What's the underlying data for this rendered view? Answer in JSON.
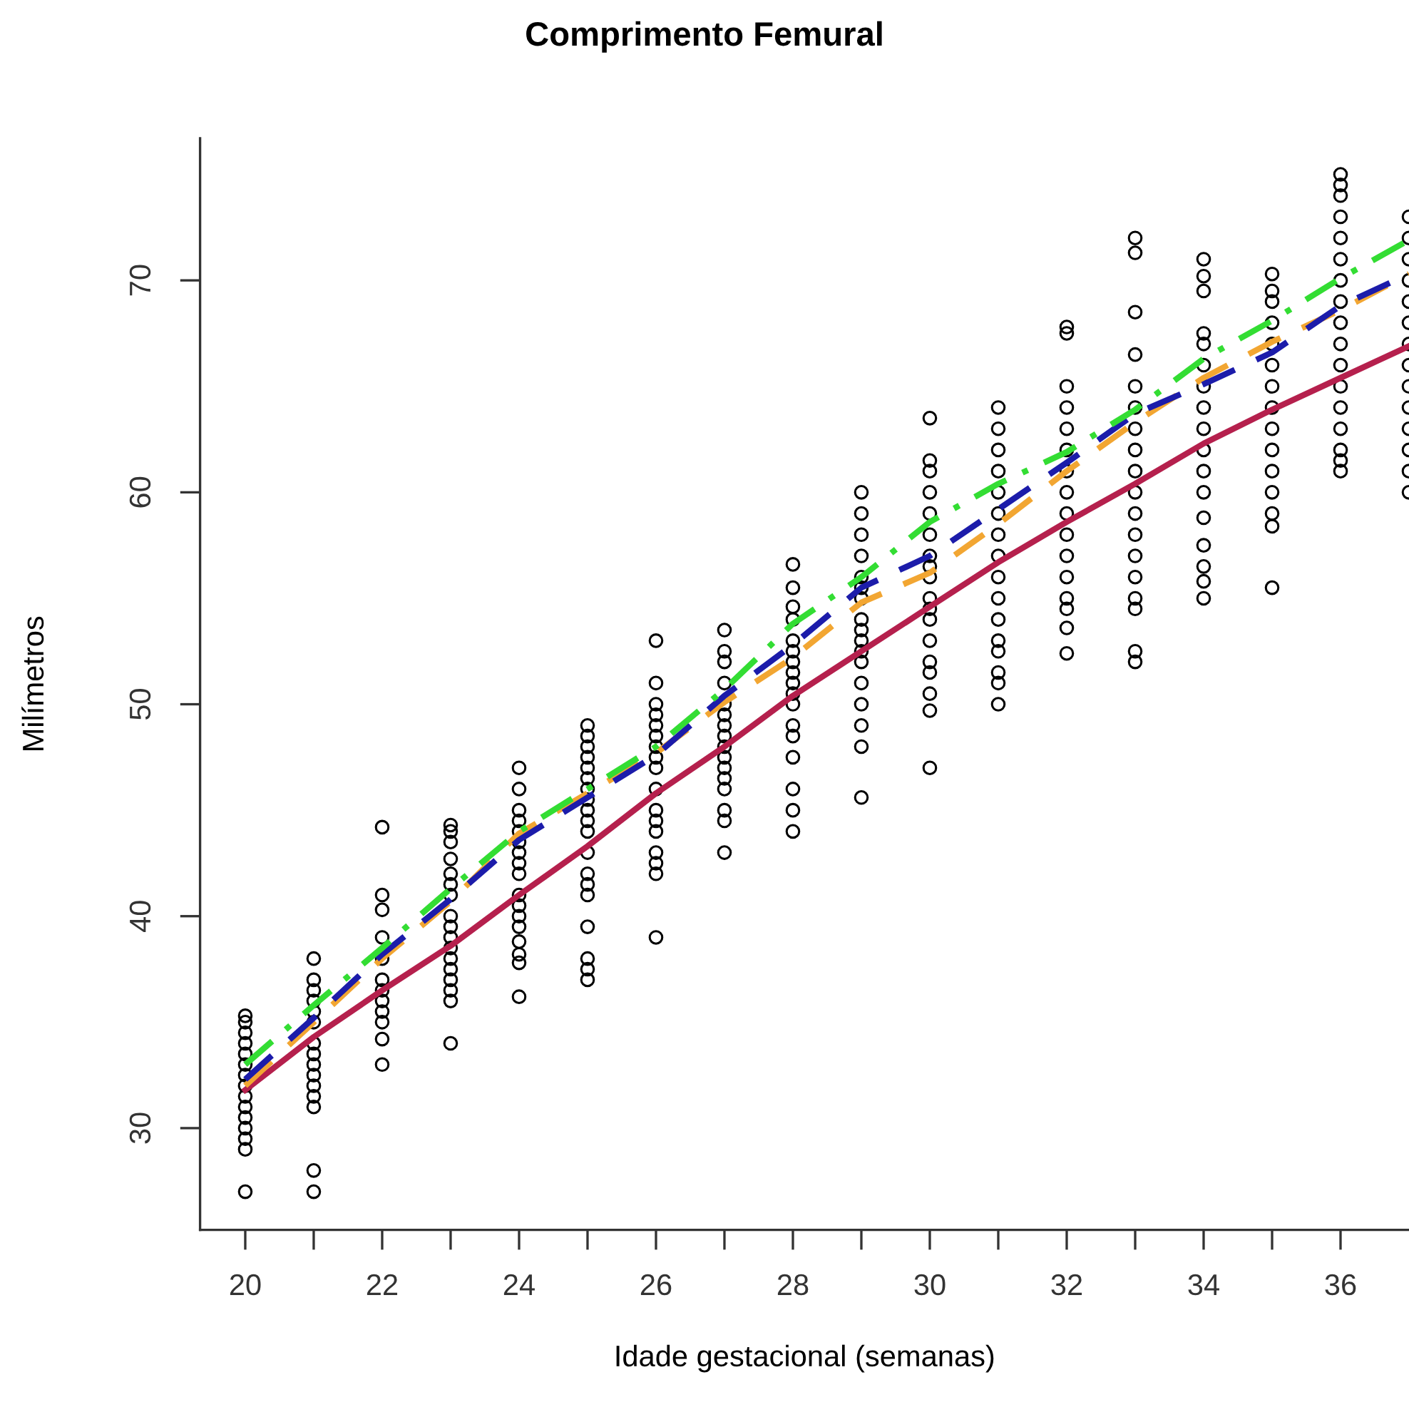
{
  "chart_data": {
    "type": "scatter",
    "title": "Comprimento Femural",
    "xlabel": "Idade gestacional (semanas)",
    "ylabel": "Milímetros",
    "xlim": [
      19.34,
      37.0
    ],
    "ylim": [
      25.2,
      76.7
    ],
    "xticks": [
      20,
      {
        "value": 21,
        "label": null
      },
      22,
      {
        "value": 23,
        "label": null
      },
      24,
      {
        "value": 25,
        "label": null
      },
      26,
      {
        "value": 27,
        "label": null
      },
      28,
      {
        "value": 29,
        "label": null
      },
      30,
      {
        "value": 31,
        "label": null
      },
      32,
      {
        "value": 33,
        "label": null
      },
      34,
      {
        "value": 35,
        "label": null
      },
      36
    ],
    "yticks": [
      30,
      40,
      50,
      60,
      70
    ],
    "grid": false,
    "legend": false,
    "series": [
      {
        "color": "#000000",
        "marker": "circle",
        "x": [
          20,
          20,
          20,
          20,
          20,
          20,
          20,
          20,
          20,
          20,
          20,
          20,
          20,
          20,
          20,
          21,
          21,
          21,
          21,
          21,
          21,
          21,
          21,
          21,
          21,
          21,
          21,
          21,
          21,
          21,
          22,
          22,
          22,
          22,
          22,
          22,
          22,
          22,
          22,
          22,
          22,
          22,
          23,
          23,
          23,
          23,
          23,
          23,
          23,
          23,
          23,
          23,
          23,
          23,
          23,
          23,
          23,
          23,
          23,
          24,
          24,
          24,
          24,
          24,
          24,
          24,
          24,
          24,
          24,
          24,
          24,
          24,
          24,
          24,
          24,
          24,
          25,
          25,
          25,
          25,
          25,
          25,
          25,
          25,
          25,
          25,
          25,
          25,
          25,
          25,
          25,
          25,
          25,
          25,
          25,
          26,
          26,
          26,
          26,
          26,
          26,
          26,
          26,
          26,
          26,
          26,
          26,
          26,
          26,
          26,
          26,
          26,
          27,
          27,
          27,
          27,
          27,
          27,
          27,
          27,
          27,
          27,
          27,
          27,
          27,
          27,
          27,
          27,
          28,
          28,
          28,
          28,
          28,
          28,
          28,
          28,
          28,
          28,
          28,
          28,
          28,
          28,
          28,
          28,
          28,
          29,
          29,
          29,
          29,
          29,
          29,
          29,
          29,
          29,
          29,
          29,
          29,
          29,
          29,
          29,
          29,
          29,
          30,
          30,
          30,
          30,
          30,
          30,
          30,
          30,
          30,
          30,
          30,
          30,
          30,
          30,
          30,
          30,
          30,
          30,
          31,
          31,
          31,
          31,
          31,
          31,
          31,
          31,
          31,
          31,
          31,
          31,
          31,
          31,
          31,
          31,
          32,
          32,
          32,
          32,
          32,
          32,
          32,
          32,
          32,
          32,
          32,
          32,
          32,
          32,
          32,
          32,
          33,
          33,
          33,
          33,
          33,
          33,
          33,
          33,
          33,
          33,
          33,
          33,
          33,
          33,
          33,
          33,
          33,
          33,
          34,
          34,
          34,
          34,
          34,
          34,
          34,
          34,
          34,
          34,
          34,
          34,
          34,
          34,
          34,
          34,
          34,
          35,
          35,
          35,
          35,
          35,
          35,
          35,
          35,
          35,
          35,
          35,
          35,
          35,
          35,
          35,
          36,
          36,
          36,
          36,
          36,
          36,
          36,
          36,
          36,
          36,
          36,
          36,
          36,
          36,
          36,
          36,
          36,
          37,
          37,
          37,
          37,
          37,
          37,
          37,
          37,
          37,
          37,
          37,
          37,
          37,
          37
        ],
        "values": [
          27,
          29,
          29.5,
          30,
          30.5,
          31,
          31.5,
          32,
          32.5,
          33,
          33.5,
          34,
          34.5,
          35,
          35.3,
          27,
          28,
          31,
          31.5,
          32,
          32.5,
          33,
          33.5,
          34,
          35,
          35.5,
          36,
          36.5,
          37,
          38,
          33,
          34.2,
          35,
          35.5,
          36,
          36.5,
          37,
          38,
          39,
          40.3,
          41,
          44.2,
          34,
          36,
          36.5,
          37,
          37.5,
          38,
          38.5,
          39,
          39.5,
          40,
          41,
          41.5,
          42,
          42.7,
          43.5,
          44,
          44.3,
          36.2,
          37.8,
          38.2,
          38.8,
          39.5,
          40,
          40.5,
          41,
          42,
          42.5,
          43,
          43.5,
          44,
          44.5,
          45,
          46,
          47,
          37,
          37.5,
          38,
          39.5,
          41,
          41.5,
          42,
          43,
          44,
          44.5,
          45,
          45.5,
          46,
          46.5,
          47,
          47.5,
          48,
          48.5,
          49,
          39,
          42,
          42.5,
          43,
          44,
          44.5,
          45,
          46,
          47,
          47.5,
          48,
          48.5,
          49,
          49.5,
          50,
          51,
          53,
          43,
          44.5,
          45,
          46,
          46.5,
          47,
          47.5,
          48,
          48.5,
          49,
          49.5,
          50,
          51,
          52,
          52.5,
          53.5,
          44,
          45,
          46,
          47.5,
          48.5,
          49,
          50,
          50.5,
          51,
          51.5,
          52,
          52.5,
          53,
          54,
          54.6,
          55.5,
          56.6,
          45.6,
          48,
          49,
          50,
          51,
          52,
          52.5,
          53,
          53.5,
          54,
          55,
          55.5,
          56,
          57,
          58,
          59,
          60,
          47,
          49.7,
          50.5,
          51.5,
          52,
          53,
          54,
          54.5,
          55,
          56,
          56.5,
          57,
          58,
          59,
          60,
          61,
          61.5,
          63.5,
          50,
          51,
          51.5,
          52.5,
          53,
          54,
          55,
          56,
          57,
          58,
          59,
          60,
          61,
          62,
          63,
          64,
          52.4,
          53.6,
          54.5,
          55,
          56,
          57,
          58,
          59,
          60,
          61,
          62,
          63,
          64,
          65,
          67.5,
          67.8,
          52,
          52.5,
          54.5,
          55,
          56,
          57,
          58,
          59,
          60,
          61,
          62,
          63,
          64,
          65,
          66.5,
          68.5,
          71.3,
          72,
          55,
          55.8,
          56.5,
          57.5,
          58.8,
          60,
          61,
          62,
          63,
          64,
          65,
          66,
          67,
          67.5,
          69.5,
          70.2,
          71,
          55.5,
          58.4,
          59,
          60,
          61,
          62,
          63,
          64,
          65,
          66,
          67,
          68,
          69,
          69.5,
          70.3,
          61,
          61.5,
          62,
          63,
          64,
          65,
          66,
          67,
          68,
          69,
          70,
          71,
          72,
          73,
          74,
          74.5,
          75,
          60,
          61,
          62,
          63,
          64,
          65,
          66,
          67,
          68,
          69,
          70,
          71,
          72,
          73
        ]
      },
      {
        "type": "line",
        "color": "#b5204d",
        "line_style": "solid",
        "x": [
          20,
          21,
          22,
          23,
          24,
          25,
          26,
          27,
          28,
          29,
          30,
          31,
          32,
          33,
          34,
          35,
          36,
          37
        ],
        "values": [
          31.8,
          34.3,
          36.5,
          38.6,
          41.0,
          43.3,
          45.8,
          48.0,
          50.4,
          52.5,
          54.6,
          56.7,
          58.6,
          60.4,
          62.3,
          63.9,
          65.4,
          66.9
        ]
      },
      {
        "type": "line",
        "color": "#f2a632",
        "line_style": "dashed",
        "x": [
          20,
          21,
          22,
          23,
          24,
          25,
          26,
          27,
          28,
          29,
          30,
          31,
          32,
          33,
          34,
          35,
          36,
          37
        ],
        "values": [
          32.0,
          35.0,
          38.0,
          40.7,
          43.9,
          45.8,
          47.7,
          50.1,
          52.2,
          54.8,
          56.2,
          58.5,
          61.0,
          63.3,
          65.4,
          67.1,
          68.6,
          70.3
        ]
      },
      {
        "type": "line",
        "color": "#1c1caa",
        "line_style": "dashed",
        "x": [
          20,
          21,
          22,
          23,
          24,
          25,
          26,
          27,
          28,
          29,
          30,
          31,
          32,
          33,
          34,
          35,
          36,
          37
        ],
        "values": [
          32.3,
          35.2,
          38.2,
          40.8,
          43.6,
          45.6,
          47.6,
          50.4,
          52.8,
          55.5,
          57.0,
          59.2,
          61.4,
          63.7,
          65.1,
          66.6,
          68.8,
          70.3
        ]
      },
      {
        "type": "line",
        "color": "#33dd33",
        "line_style": "dashdot",
        "x": [
          20,
          21,
          22,
          23,
          24,
          25,
          26,
          27,
          28,
          29,
          30,
          31,
          32,
          33,
          34,
          35,
          36,
          37
        ],
        "values": [
          33.0,
          35.8,
          38.5,
          41.3,
          44.0,
          46.0,
          48.0,
          50.7,
          53.8,
          56.0,
          58.6,
          60.4,
          61.9,
          63.9,
          66.3,
          68.1,
          70.1,
          71.9
        ]
      }
    ]
  }
}
